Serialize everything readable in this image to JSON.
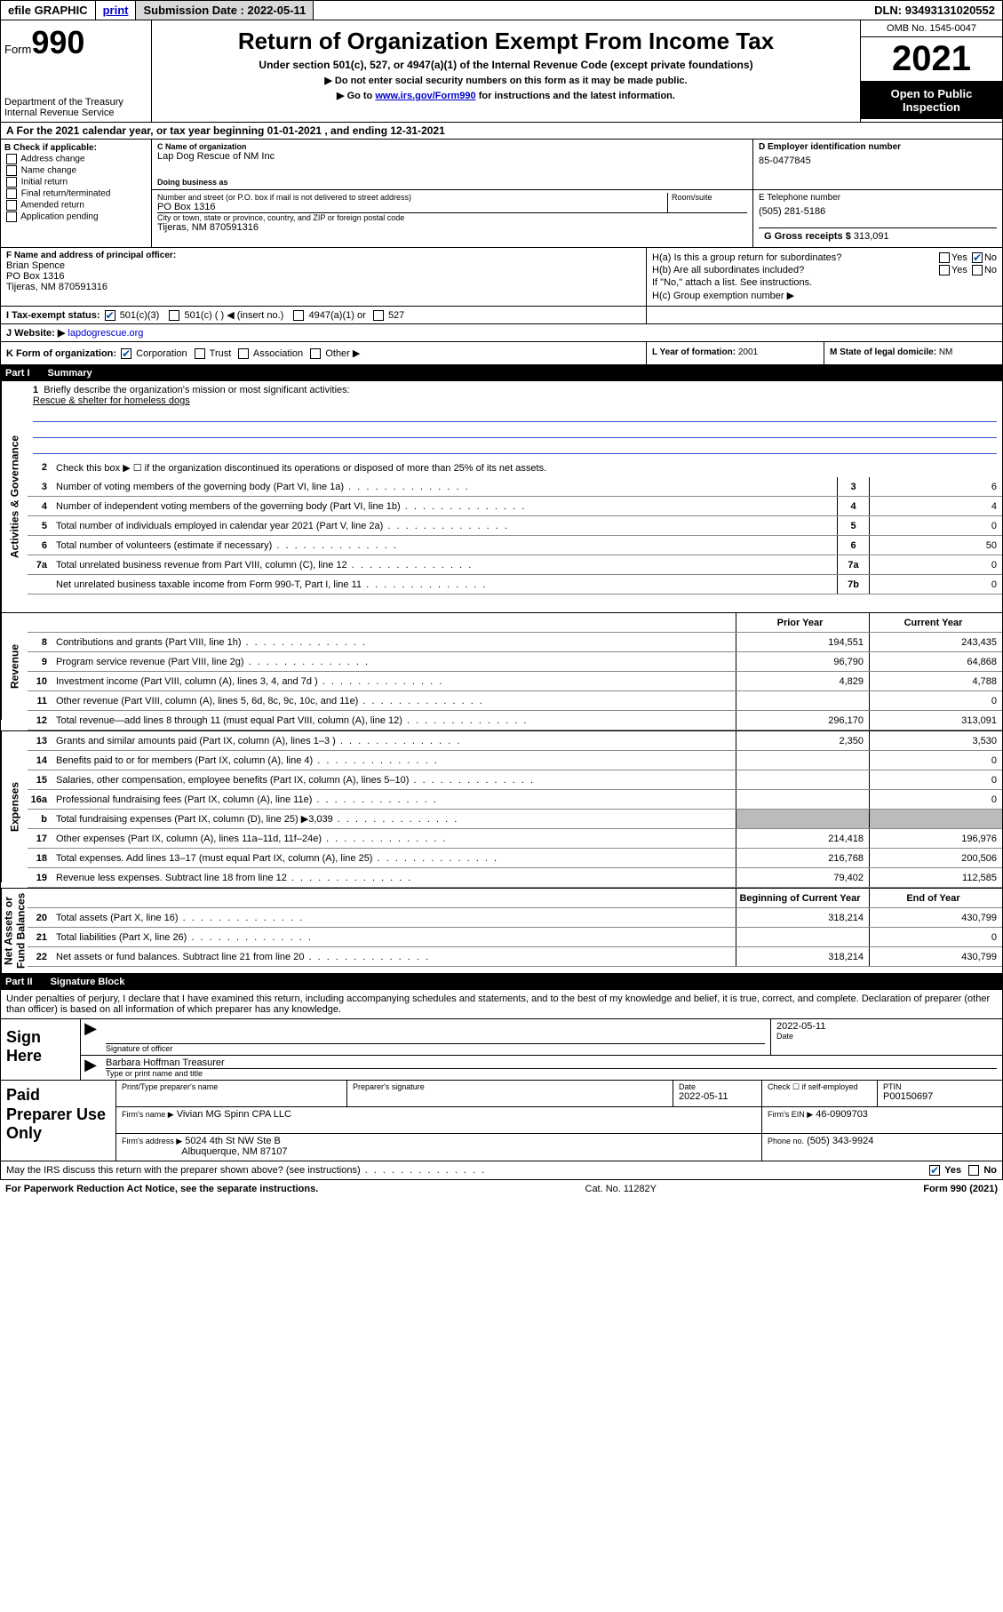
{
  "topbar": {
    "efile": "efile GRAPHIC",
    "print": "print",
    "submission_label": "Submission Date :",
    "submission_date": "2022-05-11",
    "dln_label": "DLN:",
    "dln": "93493131020552"
  },
  "header": {
    "form_prefix": "Form",
    "form_number": "990",
    "dept": "Department of the Treasury",
    "irs": "Internal Revenue Service",
    "title": "Return of Organization Exempt From Income Tax",
    "sub1": "Under section 501(c), 527, or 4947(a)(1) of the Internal Revenue Code (except private foundations)",
    "sub2": "▶ Do not enter social security numbers on this form as it may be made public.",
    "sub3_pre": "▶ Go to ",
    "sub3_link": "www.irs.gov/Form990",
    "sub3_post": " for instructions and the latest information.",
    "omb": "OMB No. 1545-0047",
    "year": "2021",
    "inspect": "Open to Public Inspection"
  },
  "rowA": {
    "text": "A For the 2021 calendar year, or tax year beginning 01-01-2021   , and ending 12-31-2021"
  },
  "colB": {
    "label": "B Check if applicable:",
    "opts": [
      "Address change",
      "Name change",
      "Initial return",
      "Final return/terminated",
      "Amended return",
      "Application pending"
    ]
  },
  "nameblock": {
    "c_label": "C Name of organization",
    "c_name": "Lap Dog Rescue of NM Inc",
    "dba_label": "Doing business as",
    "addr_label": "Number and street (or P.O. box if mail is not delivered to street address)",
    "room_label": "Room/suite",
    "addr": "PO Box 1316",
    "city_label": "City or town, state or province, country, and ZIP or foreign postal code",
    "city": "Tijeras, NM  870591316",
    "d_label": "D Employer identification number",
    "ein": "85-0477845",
    "e_label": "E Telephone number",
    "tel": "(505) 281-5186",
    "g_label": "G Gross receipts $",
    "gross": "313,091"
  },
  "FGH": {
    "f_label": "F Name and address of principal officer:",
    "f_name": "Brian Spence",
    "f_addr1": "PO Box 1316",
    "f_addr2": "Tijeras, NM  870591316",
    "ha": "H(a)  Is this a group return for subordinates?",
    "hb": "H(b)  Are all subordinates included?",
    "hb_note": "If \"No,\" attach a list. See instructions.",
    "hc": "H(c)  Group exemption number ▶",
    "yes": "Yes",
    "no": "No"
  },
  "rowI": {
    "label": "I  Tax-exempt status:",
    "opt1": "501(c)(3)",
    "opt2": "501(c) (   ) ◀ (insert no.)",
    "opt3": "4947(a)(1) or",
    "opt4": "527"
  },
  "rowJ": {
    "label": "J  Website: ▶",
    "site": "lapdogrescue.org"
  },
  "rowK": {
    "label": "K Form of organization:",
    "opts": [
      "Corporation",
      "Trust",
      "Association",
      "Other ▶"
    ],
    "l_label": "L Year of formation:",
    "l_val": "2001",
    "m_label": "M State of legal domicile:",
    "m_val": "NM"
  },
  "parts": {
    "p1": "Part I",
    "p1t": "Summary",
    "p2": "Part II",
    "p2t": "Signature Block"
  },
  "summary": {
    "vside": {
      "ag": "Activities & Governance",
      "rev": "Revenue",
      "exp": "Expenses",
      "na": "Net Assets or Fund Balances"
    },
    "line1": "Briefly describe the organization's mission or most significant activities:",
    "mission": "Rescue & shelter for homeless dogs",
    "line2": "Check this box ▶ ☐  if the organization discontinued its operations or disposed of more than 25% of its net assets.",
    "ag_lines": [
      {
        "n": "3",
        "t": "Number of voting members of the governing body (Part VI, line 1a)",
        "box": "3",
        "v": "6"
      },
      {
        "n": "4",
        "t": "Number of independent voting members of the governing body (Part VI, line 1b)",
        "box": "4",
        "v": "4"
      },
      {
        "n": "5",
        "t": "Total number of individuals employed in calendar year 2021 (Part V, line 2a)",
        "box": "5",
        "v": "0"
      },
      {
        "n": "6",
        "t": "Total number of volunteers (estimate if necessary)",
        "box": "6",
        "v": "50"
      },
      {
        "n": "7a",
        "t": "Total unrelated business revenue from Part VIII, column (C), line 12",
        "box": "7a",
        "v": "0"
      },
      {
        "n": "",
        "t": "Net unrelated business taxable income from Form 990-T, Part I, line 11",
        "box": "7b",
        "v": "0"
      }
    ],
    "col_hdr": {
      "prior": "Prior Year",
      "current": "Current Year",
      "begin": "Beginning of Current Year",
      "end": "End of Year"
    },
    "rev_lines": [
      {
        "n": "8",
        "t": "Contributions and grants (Part VIII, line 1h)",
        "p": "194,551",
        "c": "243,435"
      },
      {
        "n": "9",
        "t": "Program service revenue (Part VIII, line 2g)",
        "p": "96,790",
        "c": "64,868"
      },
      {
        "n": "10",
        "t": "Investment income (Part VIII, column (A), lines 3, 4, and 7d )",
        "p": "4,829",
        "c": "4,788"
      },
      {
        "n": "11",
        "t": "Other revenue (Part VIII, column (A), lines 5, 6d, 8c, 9c, 10c, and 11e)",
        "p": "",
        "c": "0"
      },
      {
        "n": "12",
        "t": "Total revenue—add lines 8 through 11 (must equal Part VIII, column (A), line 12)",
        "p": "296,170",
        "c": "313,091"
      }
    ],
    "exp_lines": [
      {
        "n": "13",
        "t": "Grants and similar amounts paid (Part IX, column (A), lines 1–3 )",
        "p": "2,350",
        "c": "3,530"
      },
      {
        "n": "14",
        "t": "Benefits paid to or for members (Part IX, column (A), line 4)",
        "p": "",
        "c": "0"
      },
      {
        "n": "15",
        "t": "Salaries, other compensation, employee benefits (Part IX, column (A), lines 5–10)",
        "p": "",
        "c": "0"
      },
      {
        "n": "16a",
        "t": "Professional fundraising fees (Part IX, column (A), line 11e)",
        "p": "",
        "c": "0"
      },
      {
        "n": "b",
        "t": "Total fundraising expenses (Part IX, column (D), line 25) ▶3,039",
        "p": "shade",
        "c": "shade"
      },
      {
        "n": "17",
        "t": "Other expenses (Part IX, column (A), lines 11a–11d, 11f–24e)",
        "p": "214,418",
        "c": "196,976"
      },
      {
        "n": "18",
        "t": "Total expenses. Add lines 13–17 (must equal Part IX, column (A), line 25)",
        "p": "216,768",
        "c": "200,506"
      },
      {
        "n": "19",
        "t": "Revenue less expenses. Subtract line 18 from line 12",
        "p": "79,402",
        "c": "112,585"
      }
    ],
    "na_lines": [
      {
        "n": "20",
        "t": "Total assets (Part X, line 16)",
        "p": "318,214",
        "c": "430,799"
      },
      {
        "n": "21",
        "t": "Total liabilities (Part X, line 26)",
        "p": "",
        "c": "0"
      },
      {
        "n": "22",
        "t": "Net assets or fund balances. Subtract line 21 from line 20",
        "p": "318,214",
        "c": "430,799"
      }
    ]
  },
  "sig": {
    "intro": "Under penalties of perjury, I declare that I have examined this return, including accompanying schedules and statements, and to the best of my knowledge and belief, it is true, correct, and complete. Declaration of preparer (other than officer) is based on all information of which preparer has any knowledge.",
    "here": "Sign Here",
    "sig_label": "Signature of officer",
    "date_label": "Date",
    "date": "2022-05-11",
    "name": "Barbara Hoffman Treasurer",
    "name_label": "Type or print name and title"
  },
  "prep": {
    "title": "Paid Preparer Use Only",
    "h1": "Print/Type preparer's name",
    "h2": "Preparer's signature",
    "h3": "Date",
    "h3v": "2022-05-11",
    "h4": "Check ☐ if self-employed",
    "h5": "PTIN",
    "ptin": "P00150697",
    "firm_name_label": "Firm's name    ▶",
    "firm_name": "Vivian MG Spinn CPA LLC",
    "firm_ein_label": "Firm's EIN ▶",
    "firm_ein": "46-0909703",
    "firm_addr_label": "Firm's address ▶",
    "firm_addr1": "5024 4th St NW Ste B",
    "firm_addr2": "Albuquerque, NM  87107",
    "phone_label": "Phone no.",
    "phone": "(505) 343-9924"
  },
  "discuss": {
    "q": "May the IRS discuss this return with the preparer shown above? (see instructions)",
    "yes": "Yes",
    "no": "No"
  },
  "footer": {
    "left": "For Paperwork Reduction Act Notice, see the separate instructions.",
    "mid": "Cat. No. 11282Y",
    "right": "Form 990 (2021)"
  }
}
